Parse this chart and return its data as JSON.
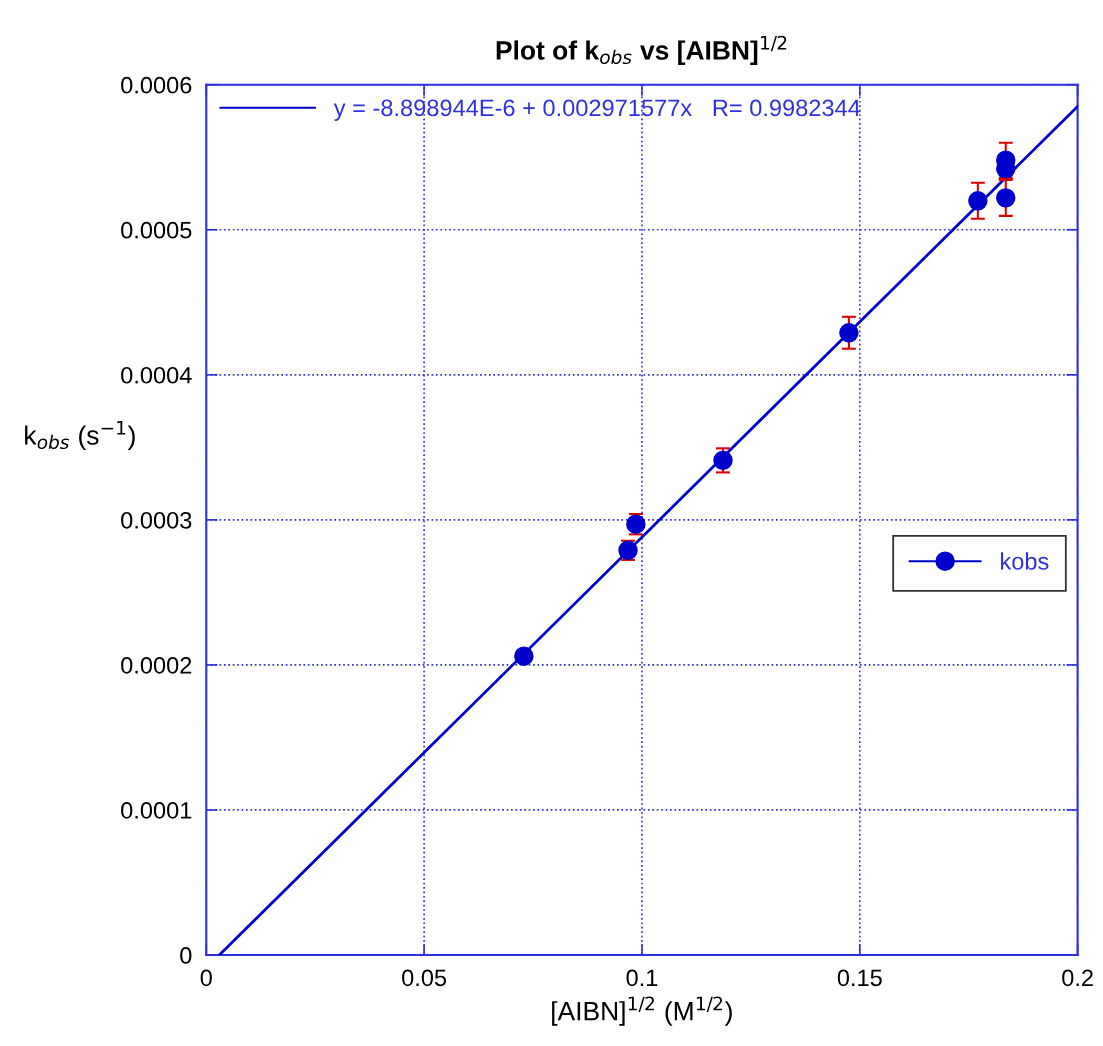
{
  "chart_data": {
    "type": "scatter",
    "title": "Plot of k$_{obs}$ vs [AIBN]$^{1/2}$",
    "xlabel": "[AIBN]$^{1/2}$ (M$^{1/2}$)",
    "ylabel": "k$_{obs}$ (s$^{−1}$)",
    "xlim": [
      0,
      0.2
    ],
    "ylim": [
      0,
      0.0006
    ],
    "xticks": [
      0,
      0.05,
      0.1,
      0.15,
      0.2
    ],
    "yticks": [
      0,
      0.0001,
      0.0002,
      0.0003,
      0.0004,
      0.0005,
      0.0006
    ],
    "grid": true,
    "legend": "right",
    "marker": "circle",
    "series": [
      {
        "name": "y = -8.898944E-6 + 0.002971577x   R= 0.9982344",
        "type": "line",
        "color": "#0000cc",
        "x": [
          0.003,
          0.2
        ],
        "values": [
          0.0,
          0.000585
        ],
        "marker": "none"
      },
      {
        "name": "kobs",
        "color": "#0000cc",
        "x": [
          0.0729,
          0.0968,
          0.0986,
          0.1186,
          0.1475,
          0.1771,
          0.1835,
          0.1835,
          0.1835
        ],
        "values": [
          0.000206,
          0.000279,
          0.000297,
          0.000341,
          0.000429,
          0.00052,
          0.000548,
          0.000542,
          0.000522
        ],
        "errors": [
          2e-06,
          6.6e-06,
          7e-06,
          8.3e-06,
          1.1e-05,
          1.24e-05,
          1.2e-05,
          7e-06,
          1.24e-05
        ]
      }
    ]
  }
}
